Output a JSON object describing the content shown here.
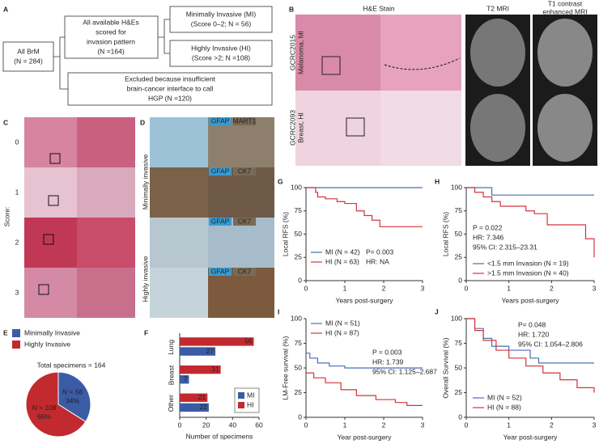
{
  "panel_labels": [
    "A",
    "B",
    "C",
    "D",
    "E",
    "F",
    "G",
    "H",
    "I",
    "J"
  ],
  "flowchart": {
    "root": [
      "All BrM",
      "(N = 284)"
    ],
    "scored": [
      "All available H&Es",
      "scored for",
      "invasion pattern",
      "(N =164)"
    ],
    "mi": [
      "Minimally Invasive (MI)",
      "(Score 0–2; N = 56)"
    ],
    "hi": [
      "Highly Invasive (HI)",
      "(Score >2; N =108)"
    ],
    "excluded": [
      "Excluded because insufficient",
      "brain-cancer interface to call",
      "HGP (N =120)"
    ]
  },
  "images": {
    "he_title": "H&E Stain",
    "t2_title": "T2 MRI",
    "t1_title": [
      "T1 contrast",
      "enhanced MRI"
    ],
    "case_mi": [
      "GCRC2015",
      "Melanoma, MI"
    ],
    "case_hi": [
      "GCRC2093",
      "Breast, HI"
    ],
    "score_label": "Score:",
    "scores": [
      "0",
      "1",
      "2",
      "3"
    ],
    "stain_labels": [
      [
        "GFAP",
        "MART1"
      ],
      [
        "GFAP",
        "CK7"
      ],
      [
        "GFAP",
        "CK7"
      ],
      [
        "GFAP",
        "CK7"
      ]
    ],
    "groups": [
      "Minimally invasive",
      "Highly invasive"
    ]
  },
  "chart_data": [
    {
      "type": "pie",
      "subtitle": "Total specimens = 164",
      "categories": [
        "Minimally Invasive",
        "Highly Invasive"
      ],
      "values": [
        34,
        66
      ],
      "value_labels": [
        "34%",
        "66%"
      ],
      "count_labels": [
        "N = 56",
        "N = 108"
      ],
      "colors": [
        "#3b5ba5",
        "#c22a2f"
      ]
    },
    {
      "type": "bar",
      "orientation": "horizontal",
      "categories": [
        "Lung",
        "Breast",
        "Other"
      ],
      "xlabel": "Number of specimens",
      "xlim": [
        0,
        60
      ],
      "xticks": [
        0,
        20,
        40,
        60
      ],
      "series": [
        {
          "name": "MI",
          "color": "#3b5ba5",
          "values": [
            27,
            7,
            22
          ]
        },
        {
          "name": "HI",
          "color": "#c22a2f",
          "values": [
            56,
            31,
            21
          ]
        }
      ]
    },
    {
      "type": "step",
      "ylabel": "Local RFS (%)",
      "xlabel": "Years post-surgery",
      "xlim": [
        0,
        3
      ],
      "ylim": [
        0,
        100
      ],
      "xticks": [
        0,
        1,
        2,
        3
      ],
      "yticks": [
        0,
        25,
        50,
        75,
        100
      ],
      "annotations": [
        "P= 0.003",
        "HR: NA"
      ],
      "series": [
        {
          "name": "MI (N = 42)",
          "color": "#4a6fb5",
          "x": [
            0,
            3
          ],
          "values": [
            100,
            100
          ]
        },
        {
          "name": "HI (N = 63)",
          "color": "#d2353a",
          "x": [
            0,
            0.25,
            0.3,
            0.5,
            0.8,
            1.0,
            1.3,
            1.5,
            1.7,
            1.9,
            3
          ],
          "values": [
            100,
            95,
            90,
            88,
            85,
            83,
            75,
            70,
            65,
            58,
            58
          ]
        }
      ]
    },
    {
      "type": "step",
      "ylabel": "Local RFS (%)",
      "xlabel": "Years post-surgery",
      "xlim": [
        0,
        3
      ],
      "ylim": [
        0,
        100
      ],
      "xticks": [
        0,
        1,
        2,
        3
      ],
      "yticks": [
        0,
        25,
        50,
        75,
        100
      ],
      "annotations": [
        "P = 0.022",
        "HR: 7.346",
        "95% CI: 2.315–23.31"
      ],
      "series": [
        {
          "name": "<1.5 mm Invasion (N = 19)",
          "color": "#4a6fb5",
          "x": [
            0,
            0.6,
            3
          ],
          "values": [
            100,
            92,
            92
          ]
        },
        {
          "name": ">1.5 mm Invasion (N = 40)",
          "color": "#d2353a",
          "x": [
            0,
            0.2,
            0.4,
            0.6,
            0.8,
            1.4,
            1.6,
            1.9,
            2.8,
            3
          ],
          "values": [
            100,
            95,
            90,
            85,
            80,
            75,
            72,
            60,
            45,
            25
          ]
        }
      ]
    },
    {
      "type": "step",
      "ylabel": "LM-Free survival (%)",
      "xlabel": "Year post-surgery",
      "xlim": [
        0,
        3
      ],
      "ylim": [
        0,
        100
      ],
      "xticks": [
        0,
        1,
        2,
        3
      ],
      "yticks": [
        0,
        25,
        50,
        75,
        100
      ],
      "annotations": [
        "P = 0.003",
        "HR: 1.739",
        "95% CI: 1.125–2.687"
      ],
      "series": [
        {
          "name": "MI (N = 51)",
          "color": "#4a6fb5",
          "x": [
            0,
            0.1,
            0.3,
            0.6,
            1.0,
            3
          ],
          "values": [
            65,
            60,
            55,
            52,
            50,
            50
          ]
        },
        {
          "name": "HI (N = 87)",
          "color": "#d2353a",
          "x": [
            0,
            0.2,
            0.5,
            0.9,
            1.3,
            1.8,
            2.3,
            2.6,
            3
          ],
          "values": [
            45,
            40,
            35,
            28,
            22,
            18,
            15,
            12,
            12
          ]
        }
      ]
    },
    {
      "type": "step",
      "ylabel": "Overall Survival (%)",
      "xlabel": "Year post-surgery",
      "xlim": [
        0,
        3
      ],
      "ylim": [
        0,
        100
      ],
      "xticks": [
        0,
        1,
        2,
        3
      ],
      "yticks": [
        0,
        25,
        50,
        75,
        100
      ],
      "annotations": [
        "P= 0.048",
        "HR: 1.720",
        "95% CI: 1.054–2.806"
      ],
      "series": [
        {
          "name": "MI (N = 52)",
          "color": "#4a6fb5",
          "x": [
            0,
            0.2,
            0.4,
            0.6,
            1.0,
            1.5,
            1.7,
            3
          ],
          "values": [
            100,
            90,
            80,
            72,
            68,
            60,
            55,
            55
          ]
        },
        {
          "name": "HI (N = 88)",
          "color": "#d2353a",
          "x": [
            0,
            0.2,
            0.4,
            0.7,
            1.0,
            1.4,
            1.8,
            2.2,
            2.6,
            3
          ],
          "values": [
            100,
            88,
            78,
            68,
            60,
            52,
            45,
            38,
            30,
            25
          ]
        }
      ]
    }
  ]
}
